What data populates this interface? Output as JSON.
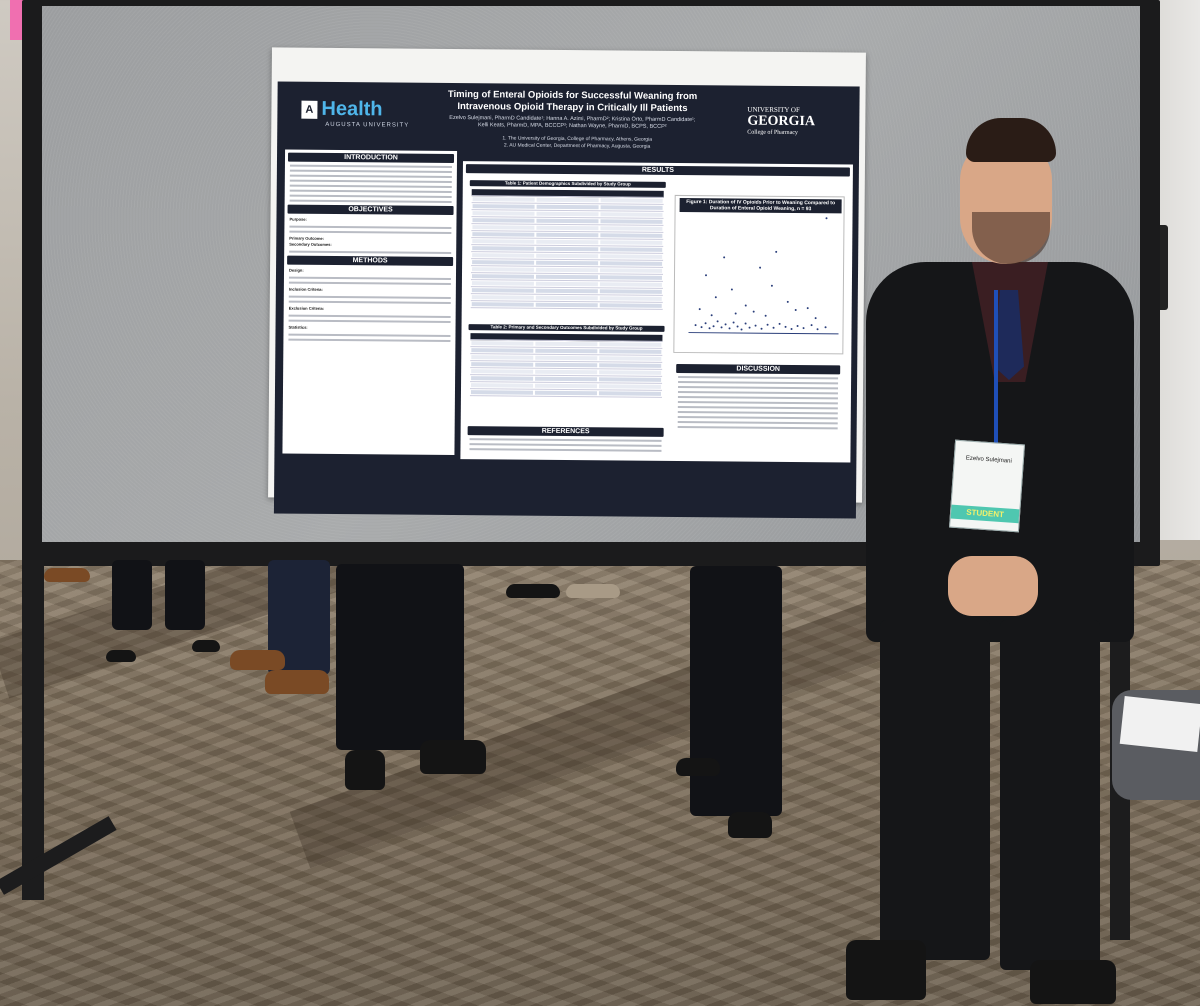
{
  "poster": {
    "title_line1": "Timing of Enteral Opioids for Successful Weaning from",
    "title_line2": "Intravenous Opioid Therapy in Critically Ill Patients",
    "authors_line1": "Ezelvo Sulejmani, PharmD Candidate¹; Hanna A. Azimi, PharmD²; Kristina Orto, PharmD Candidate¹;",
    "authors_line2": "Kelli Keats, PharmD, MPA, BCCCP²; Nathan Wayne, PharmD, BCPS, BCCP²",
    "affiliation1": "1. The University of Georgia, College of Pharmacy, Athens, Georgia",
    "affiliation2": "2. AU Medical Center, Department of Pharmacy, Augusta, Georgia",
    "logo_left": "Health",
    "logo_left_sub": "AUGUSTA UNIVERSITY",
    "logo_right_l1": "UNIVERSITY OF",
    "logo_right_l2": "GEORGIA",
    "logo_right_l3": "College of Pharmacy",
    "sections": {
      "introduction": "INTRODUCTION",
      "objectives": "OBJECTIVES",
      "methods": "METHODS",
      "results": "RESULTS",
      "discussion": "DISCUSSION",
      "references": "REFERENCES"
    },
    "table1_title": "Table 1: Patient Demographics Subdivided by Study Group",
    "table2_title": "Table 2: Primary and Secondary Outcomes Subdivided by Study Group",
    "figure1_title": "Figure 1: Duration of IV Opioids Prior to Weaning Compared to Duration of Enteral Opioid Weaning, n = 93",
    "objectives_purpose": "Purpose:",
    "objectives_primary": "Primary Outcome:",
    "objectives_secondary": "Secondary Outcomes:",
    "methods_design": "Design:",
    "methods_inclusion": "Inclusion Criteria:",
    "methods_exclusion": "Exclusion Criteria:",
    "methods_statistics": "Statistics:"
  },
  "badge": {
    "name": "Ezelvo Sulejmani",
    "role": "STUDENT"
  },
  "colors": {
    "poster_navy": "#1c2130",
    "health_blue": "#4fb6ea",
    "lanyard_blue": "#1f4fb8",
    "badge_strip": "#4fc7b0"
  }
}
